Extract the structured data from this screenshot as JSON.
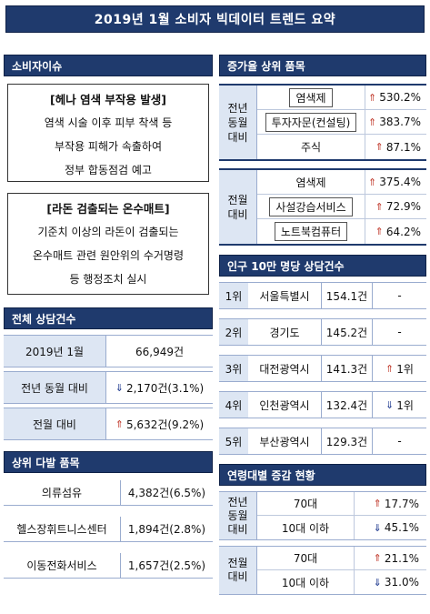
{
  "title": "2019년 1월 소비자 빅데이터 트렌드 요약",
  "issues": {
    "heading": "소비자이슈",
    "items": [
      {
        "title": "[헤나 염색 부작용 발생]",
        "lines": [
          "염색 시술 이후 피부 착색 등",
          "부작용 피해가 속출하여",
          "정부 합동점검 예고"
        ]
      },
      {
        "title": "[라돈 검출되는 온수매트]",
        "lines": [
          "기준치 이상의 라돈이 검출되는",
          "온수매트 관련 원안위의 수거명령",
          "등 행정조치 실시"
        ]
      }
    ]
  },
  "total": {
    "heading": "전체 상담건수",
    "rows": [
      {
        "label": "2019년 1월",
        "value": "66,949건",
        "dir": ""
      },
      {
        "label": "전년 동월 대비",
        "value": "2,170건(3.1%)",
        "dir": "down"
      },
      {
        "label": "전월 대비",
        "value": "5,632건(9.2%)",
        "dir": "up"
      }
    ]
  },
  "top_items": {
    "heading": "상위 다발 품목",
    "rows": [
      {
        "label": "의류섬유",
        "value": "4,382건(6.5%)"
      },
      {
        "label": "헬스장휘트니스센터",
        "value": "1,894건(2.8%)"
      },
      {
        "label": "이동전화서비스",
        "value": "1,657건(2.5%)"
      }
    ]
  },
  "increase": {
    "heading": "증가율 상위 품목",
    "groups": [
      {
        "label_lines": [
          "전년",
          "동월",
          "대비"
        ],
        "rows": [
          {
            "name": "염색제",
            "pct": "530.2%"
          },
          {
            "name": "투자자문(컨설팅)",
            "pct": "383.7%"
          },
          {
            "name": "주식",
            "pct": "87.1%"
          }
        ]
      },
      {
        "label_lines": [
          "전월",
          "대비"
        ],
        "rows": [
          {
            "name": "염색제",
            "pct": "375.4%"
          },
          {
            "name": "사설강습서비스",
            "pct": "72.9%"
          },
          {
            "name": "노트북컴퓨터",
            "pct": "64.2%"
          }
        ]
      }
    ]
  },
  "per_capita": {
    "heading": "인구 10만 명당 상담건수",
    "rows": [
      {
        "rank": "1위",
        "city": "서울특별시",
        "count": "154.1건",
        "change": "-",
        "dir": ""
      },
      {
        "rank": "2위",
        "city": "경기도",
        "count": "145.2건",
        "change": "-",
        "dir": ""
      },
      {
        "rank": "3위",
        "city": "대전광역시",
        "count": "141.3건",
        "change": "1위",
        "dir": "up"
      },
      {
        "rank": "4위",
        "city": "인천광역시",
        "count": "132.4건",
        "change": "1위",
        "dir": "down"
      },
      {
        "rank": "5위",
        "city": "부산광역시",
        "count": "129.3건",
        "change": "-",
        "dir": ""
      }
    ]
  },
  "age": {
    "heading": "연령대별 증감 현황",
    "groups": [
      {
        "label_lines": [
          "전년",
          "동월",
          "대비"
        ],
        "rows": [
          {
            "name": "70대",
            "pct": "17.7%",
            "dir": "up"
          },
          {
            "name": "10대 이하",
            "pct": "45.1%",
            "dir": "down"
          }
        ]
      },
      {
        "label_lines": [
          "전월",
          "대비"
        ],
        "rows": [
          {
            "name": "70대",
            "pct": "21.1%",
            "dir": "up"
          },
          {
            "name": "10대 이하",
            "pct": "31.0%",
            "dir": "down"
          }
        ]
      }
    ]
  }
}
